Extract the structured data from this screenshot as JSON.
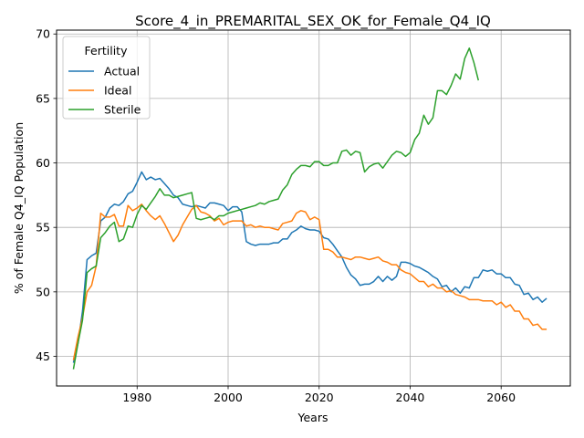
{
  "chart_data": {
    "type": "line",
    "title": "Score_4_in_PREMARITAL_SEX_OK_for_Female_Q4_IQ",
    "xlabel": "Years",
    "ylabel": "% of Female Q4_IQ Population",
    "xlim": [
      1962.3,
      2075.2
    ],
    "ylim": [
      42.7,
      70.3
    ],
    "xticks": [
      1980,
      2000,
      2020,
      2040,
      2060
    ],
    "yticks": [
      45,
      50,
      55,
      60,
      65,
      70
    ],
    "grid": true,
    "legend": {
      "title": "Fertility",
      "position": "top-left"
    },
    "series": [
      {
        "name": "Actual",
        "color": "#1f77b4",
        "points": [
          [
            1966,
            44.5
          ],
          [
            1967,
            46.0
          ],
          [
            1968,
            48.5
          ],
          [
            1969,
            52.5
          ],
          [
            1970,
            52.8
          ],
          [
            1971,
            53.0
          ],
          [
            1972,
            55.5
          ],
          [
            1973,
            55.8
          ],
          [
            1974,
            56.5
          ],
          [
            1975,
            56.8
          ],
          [
            1976,
            56.7
          ],
          [
            1977,
            57.0
          ],
          [
            1978,
            57.6
          ],
          [
            1979,
            57.8
          ],
          [
            1980,
            58.5
          ],
          [
            1981,
            59.3
          ],
          [
            1982,
            58.7
          ],
          [
            1983,
            58.9
          ],
          [
            1984,
            58.7
          ],
          [
            1985,
            58.8
          ],
          [
            1986,
            58.4
          ],
          [
            1987,
            58.0
          ],
          [
            1988,
            57.5
          ],
          [
            1989,
            57.3
          ],
          [
            1990,
            56.8
          ],
          [
            1991,
            56.7
          ],
          [
            1992,
            56.6
          ],
          [
            1993,
            56.7
          ],
          [
            1994,
            56.6
          ],
          [
            1995,
            56.5
          ],
          [
            1996,
            56.9
          ],
          [
            1997,
            56.9
          ],
          [
            1998,
            56.8
          ],
          [
            1999,
            56.7
          ],
          [
            2000,
            56.3
          ],
          [
            2001,
            56.6
          ],
          [
            2002,
            56.6
          ],
          [
            2003,
            56.2
          ],
          [
            2004,
            53.9
          ],
          [
            2005,
            53.7
          ],
          [
            2006,
            53.6
          ],
          [
            2007,
            53.7
          ],
          [
            2008,
            53.7
          ],
          [
            2009,
            53.7
          ],
          [
            2010,
            53.8
          ],
          [
            2011,
            53.8
          ],
          [
            2012,
            54.1
          ],
          [
            2013,
            54.1
          ],
          [
            2014,
            54.6
          ],
          [
            2015,
            54.8
          ],
          [
            2016,
            55.1
          ],
          [
            2017,
            54.9
          ],
          [
            2018,
            54.8
          ],
          [
            2019,
            54.8
          ],
          [
            2020,
            54.7
          ],
          [
            2021,
            54.2
          ],
          [
            2022,
            54.1
          ],
          [
            2023,
            53.7
          ],
          [
            2024,
            53.2
          ],
          [
            2025,
            52.7
          ],
          [
            2026,
            51.9
          ],
          [
            2027,
            51.3
          ],
          [
            2028,
            51.0
          ],
          [
            2029,
            50.5
          ],
          [
            2030,
            50.6
          ],
          [
            2031,
            50.6
          ],
          [
            2032,
            50.8
          ],
          [
            2033,
            51.2
          ],
          [
            2034,
            50.8
          ],
          [
            2035,
            51.2
          ],
          [
            2036,
            50.9
          ],
          [
            2037,
            51.2
          ],
          [
            2038,
            52.3
          ],
          [
            2039,
            52.3
          ],
          [
            2040,
            52.2
          ],
          [
            2041,
            52.0
          ],
          [
            2042,
            51.9
          ],
          [
            2043,
            51.7
          ],
          [
            2044,
            51.5
          ],
          [
            2045,
            51.2
          ],
          [
            2046,
            51.0
          ],
          [
            2047,
            50.4
          ],
          [
            2048,
            50.5
          ],
          [
            2049,
            50.0
          ],
          [
            2050,
            50.3
          ],
          [
            2051,
            49.9
          ],
          [
            2052,
            50.4
          ],
          [
            2053,
            50.3
          ],
          [
            2054,
            51.1
          ],
          [
            2055,
            51.1
          ],
          [
            2056,
            51.7
          ],
          [
            2057,
            51.6
          ],
          [
            2058,
            51.7
          ],
          [
            2059,
            51.4
          ],
          [
            2060,
            51.4
          ],
          [
            2061,
            51.1
          ],
          [
            2062,
            51.1
          ],
          [
            2063,
            50.6
          ],
          [
            2064,
            50.5
          ],
          [
            2065,
            49.8
          ],
          [
            2066,
            49.9
          ],
          [
            2067,
            49.4
          ],
          [
            2068,
            49.6
          ],
          [
            2069,
            49.2
          ],
          [
            2070,
            49.5
          ]
        ]
      },
      {
        "name": "Ideal",
        "color": "#ff7f0e",
        "points": [
          [
            1966,
            44.7
          ],
          [
            1967,
            46.5
          ],
          [
            1968,
            48.0
          ],
          [
            1969,
            50.0
          ],
          [
            1970,
            50.5
          ],
          [
            1971,
            52.0
          ],
          [
            1972,
            56.1
          ],
          [
            1973,
            55.8
          ],
          [
            1974,
            55.8
          ],
          [
            1975,
            56.0
          ],
          [
            1976,
            55.1
          ],
          [
            1977,
            55.1
          ],
          [
            1978,
            56.7
          ],
          [
            1979,
            56.3
          ],
          [
            1980,
            56.5
          ],
          [
            1981,
            56.8
          ],
          [
            1982,
            56.3
          ],
          [
            1983,
            55.9
          ],
          [
            1984,
            55.6
          ],
          [
            1985,
            55.9
          ],
          [
            1986,
            55.3
          ],
          [
            1987,
            54.6
          ],
          [
            1988,
            53.9
          ],
          [
            1989,
            54.4
          ],
          [
            1990,
            55.2
          ],
          [
            1991,
            55.8
          ],
          [
            1992,
            56.4
          ],
          [
            1993,
            56.7
          ],
          [
            1994,
            56.2
          ],
          [
            1995,
            56.1
          ],
          [
            1996,
            55.9
          ],
          [
            1997,
            55.5
          ],
          [
            1998,
            55.7
          ],
          [
            1999,
            55.2
          ],
          [
            2000,
            55.4
          ],
          [
            2001,
            55.5
          ],
          [
            2002,
            55.5
          ],
          [
            2003,
            55.5
          ],
          [
            2004,
            55.1
          ],
          [
            2005,
            55.2
          ],
          [
            2006,
            55.0
          ],
          [
            2007,
            55.1
          ],
          [
            2008,
            55.0
          ],
          [
            2009,
            55.0
          ],
          [
            2010,
            54.9
          ],
          [
            2011,
            54.8
          ],
          [
            2012,
            55.3
          ],
          [
            2013,
            55.4
          ],
          [
            2014,
            55.5
          ],
          [
            2015,
            56.1
          ],
          [
            2016,
            56.3
          ],
          [
            2017,
            56.2
          ],
          [
            2018,
            55.6
          ],
          [
            2019,
            55.8
          ],
          [
            2020,
            55.6
          ],
          [
            2021,
            53.3
          ],
          [
            2022,
            53.3
          ],
          [
            2023,
            53.1
          ],
          [
            2024,
            52.7
          ],
          [
            2025,
            52.7
          ],
          [
            2026,
            52.6
          ],
          [
            2027,
            52.5
          ],
          [
            2028,
            52.7
          ],
          [
            2029,
            52.7
          ],
          [
            2030,
            52.6
          ],
          [
            2031,
            52.5
          ],
          [
            2032,
            52.6
          ],
          [
            2033,
            52.7
          ],
          [
            2034,
            52.4
          ],
          [
            2035,
            52.3
          ],
          [
            2036,
            52.1
          ],
          [
            2037,
            52.1
          ],
          [
            2038,
            51.7
          ],
          [
            2039,
            51.5
          ],
          [
            2040,
            51.4
          ],
          [
            2041,
            51.1
          ],
          [
            2042,
            50.8
          ],
          [
            2043,
            50.8
          ],
          [
            2044,
            50.4
          ],
          [
            2045,
            50.6
          ],
          [
            2046,
            50.3
          ],
          [
            2047,
            50.3
          ],
          [
            2048,
            50.0
          ],
          [
            2049,
            50.1
          ],
          [
            2050,
            49.8
          ],
          [
            2051,
            49.7
          ],
          [
            2052,
            49.6
          ],
          [
            2053,
            49.4
          ],
          [
            2054,
            49.4
          ],
          [
            2055,
            49.4
          ],
          [
            2056,
            49.3
          ],
          [
            2057,
            49.3
          ],
          [
            2058,
            49.3
          ],
          [
            2059,
            49.0
          ],
          [
            2060,
            49.2
          ],
          [
            2061,
            48.8
          ],
          [
            2062,
            49.0
          ],
          [
            2063,
            48.5
          ],
          [
            2064,
            48.5
          ],
          [
            2065,
            47.9
          ],
          [
            2066,
            47.9
          ],
          [
            2067,
            47.4
          ],
          [
            2068,
            47.5
          ],
          [
            2069,
            47.1
          ],
          [
            2070,
            47.1
          ]
        ]
      },
      {
        "name": "Sterile",
        "color": "#2ca02c",
        "points": [
          [
            1966,
            44.0
          ],
          [
            1967,
            46.0
          ],
          [
            1968,
            47.8
          ],
          [
            1969,
            51.5
          ],
          [
            1970,
            51.8
          ],
          [
            1971,
            52.0
          ],
          [
            1972,
            54.2
          ],
          [
            1973,
            54.6
          ],
          [
            1974,
            55.1
          ],
          [
            1975,
            55.4
          ],
          [
            1976,
            53.9
          ],
          [
            1977,
            54.1
          ],
          [
            1978,
            55.1
          ],
          [
            1979,
            55.0
          ],
          [
            1980,
            56.0
          ],
          [
            1981,
            56.7
          ],
          [
            1982,
            56.4
          ],
          [
            1983,
            56.9
          ],
          [
            1984,
            57.4
          ],
          [
            1985,
            58.0
          ],
          [
            1986,
            57.5
          ],
          [
            1987,
            57.5
          ],
          [
            1988,
            57.3
          ],
          [
            1989,
            57.4
          ],
          [
            1990,
            57.5
          ],
          [
            1991,
            57.6
          ],
          [
            1992,
            57.7
          ],
          [
            1993,
            55.7
          ],
          [
            1994,
            55.6
          ],
          [
            1995,
            55.7
          ],
          [
            1996,
            55.8
          ],
          [
            1997,
            55.6
          ],
          [
            1998,
            55.9
          ],
          [
            1999,
            55.9
          ],
          [
            2000,
            56.1
          ],
          [
            2001,
            56.2
          ],
          [
            2002,
            56.3
          ],
          [
            2003,
            56.4
          ],
          [
            2004,
            56.5
          ],
          [
            2005,
            56.6
          ],
          [
            2006,
            56.7
          ],
          [
            2007,
            56.9
          ],
          [
            2008,
            56.8
          ],
          [
            2009,
            57.0
          ],
          [
            2010,
            57.1
          ],
          [
            2011,
            57.2
          ],
          [
            2012,
            57.9
          ],
          [
            2013,
            58.3
          ],
          [
            2014,
            59.1
          ],
          [
            2015,
            59.5
          ],
          [
            2016,
            59.8
          ],
          [
            2017,
            59.8
          ],
          [
            2018,
            59.7
          ],
          [
            2019,
            60.1
          ],
          [
            2020,
            60.1
          ],
          [
            2021,
            59.8
          ],
          [
            2022,
            59.8
          ],
          [
            2023,
            60.0
          ],
          [
            2024,
            60.0
          ],
          [
            2025,
            60.9
          ],
          [
            2026,
            61.0
          ],
          [
            2027,
            60.6
          ],
          [
            2028,
            60.9
          ],
          [
            2029,
            60.8
          ],
          [
            2030,
            59.3
          ],
          [
            2031,
            59.7
          ],
          [
            2032,
            59.9
          ],
          [
            2033,
            60.0
          ],
          [
            2034,
            59.6
          ],
          [
            2035,
            60.1
          ],
          [
            2036,
            60.6
          ],
          [
            2037,
            60.9
          ],
          [
            2038,
            60.8
          ],
          [
            2039,
            60.5
          ],
          [
            2040,
            60.8
          ],
          [
            2041,
            61.8
          ],
          [
            2042,
            62.3
          ],
          [
            2043,
            63.7
          ],
          [
            2044,
            63.0
          ],
          [
            2045,
            63.5
          ],
          [
            2046,
            65.6
          ],
          [
            2047,
            65.6
          ],
          [
            2048,
            65.3
          ],
          [
            2049,
            66.0
          ],
          [
            2050,
            66.9
          ],
          [
            2051,
            66.5
          ],
          [
            2052,
            68.1
          ],
          [
            2053,
            68.9
          ],
          [
            2054,
            67.8
          ],
          [
            2055,
            66.4
          ]
        ]
      }
    ]
  }
}
